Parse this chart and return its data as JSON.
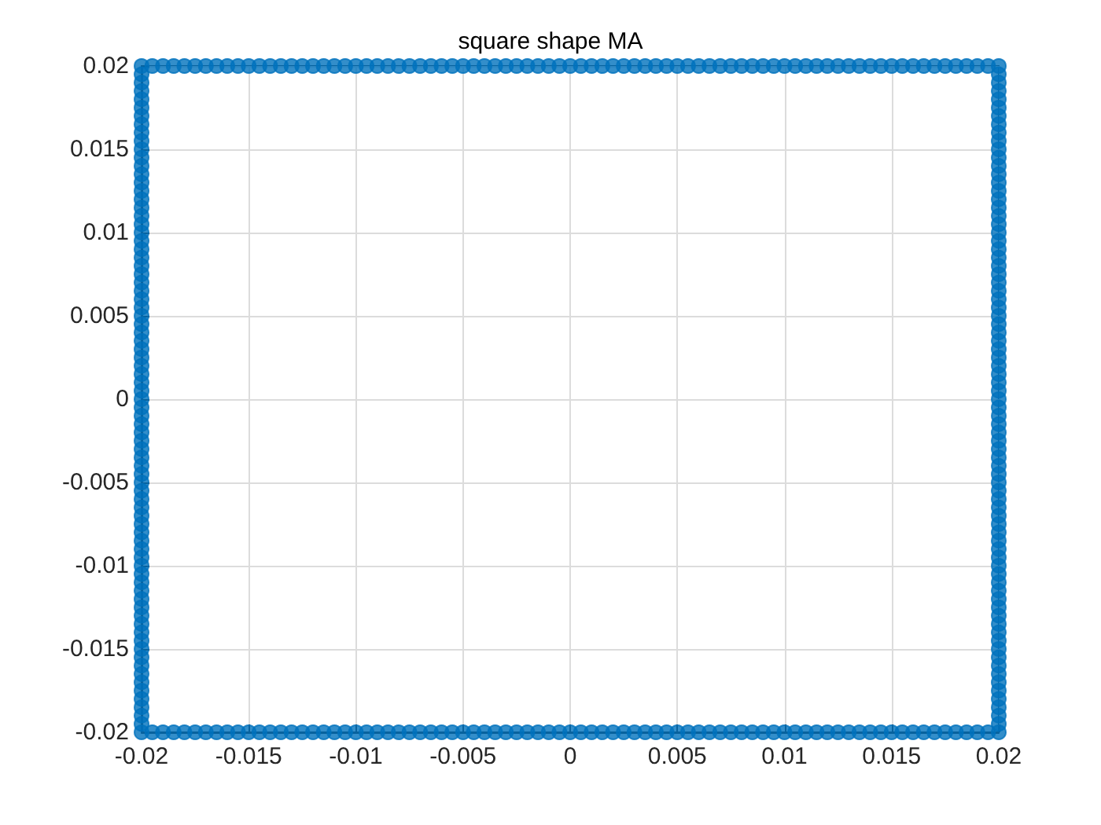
{
  "chart_data": {
    "type": "scatter",
    "title": "square shape MA",
    "series": [
      {
        "color": "#0072bd",
        "x": [
          -0.02,
          -0.0195,
          -0.019,
          -0.0185,
          -0.018,
          -0.0175,
          -0.017,
          -0.0165,
          -0.016,
          -0.0155,
          -0.015,
          -0.0145,
          -0.014,
          -0.0135,
          -0.013,
          -0.0125,
          -0.012,
          -0.0115,
          -0.011,
          -0.0105,
          -0.01,
          -0.0095,
          -0.009,
          -0.0085,
          -0.008,
          -0.0075,
          -0.007,
          -0.0065,
          -0.006,
          -0.0055,
          -0.005,
          -0.0045,
          -0.004,
          -0.0035,
          -0.003,
          -0.0025,
          -0.002,
          -0.0015,
          -0.001,
          -0.0005,
          0,
          0.0005,
          0.001,
          0.0015,
          0.002,
          0.0025,
          0.003,
          0.0035,
          0.004,
          0.0045,
          0.005,
          0.0055,
          0.006,
          0.0065,
          0.007,
          0.0075,
          0.008,
          0.0085,
          0.009,
          0.0095,
          0.01,
          0.0105,
          0.011,
          0.0115,
          0.012,
          0.0125,
          0.013,
          0.0135,
          0.014,
          0.0145,
          0.015,
          0.0155,
          0.016,
          0.0165,
          0.017,
          0.0175,
          0.018,
          0.0185,
          0.019,
          0.0195,
          0.02,
          0.02,
          0.02,
          0.02,
          0.02,
          0.02,
          0.02,
          0.02,
          0.02,
          0.02,
          0.02,
          0.02,
          0.02,
          0.02,
          0.02,
          0.02,
          0.02,
          0.02,
          0.02,
          0.02,
          0.02,
          0.02,
          0.02,
          0.02,
          0.02,
          0.02,
          0.02,
          0.02,
          0.02,
          0.02,
          0.02,
          0.02,
          0.02,
          0.02,
          0.02,
          0.02,
          0.02,
          0.02,
          0.02,
          0.02,
          0.02,
          0.02,
          0.02,
          0.02,
          0.02,
          0.02,
          0.02,
          0.02,
          0.02,
          0.02,
          0.02,
          0.02,
          0.02,
          0.02,
          0.02,
          0.02,
          0.02,
          0.02,
          0.02,
          0.02,
          0.02,
          0.02,
          0.02,
          0.02,
          0.02,
          0.02,
          0.02,
          0.02,
          0.02,
          0.02,
          0.02,
          0.02,
          0.02,
          0.02,
          0.02,
          0.02,
          0.02,
          0.02,
          0.02,
          0.02,
          0.02,
          0.0195,
          0.019,
          0.0185,
          0.018,
          0.0175,
          0.017,
          0.0165,
          0.016,
          0.0155,
          0.015,
          0.0145,
          0.014,
          0.0135,
          0.013,
          0.0125,
          0.012,
          0.0115,
          0.011,
          0.0105,
          0.01,
          0.0095,
          0.009,
          0.0085,
          0.008,
          0.0075,
          0.007,
          0.0065,
          0.006,
          0.0055,
          0.005,
          0.0045,
          0.004,
          0.0035,
          0.003,
          0.0025,
          0.002,
          0.0015,
          0.001,
          0.0005,
          0,
          -0.0005,
          -0.001,
          -0.0015,
          -0.002,
          -0.0025,
          -0.003,
          -0.0035,
          -0.004,
          -0.0045,
          -0.005,
          -0.0055,
          -0.006,
          -0.0065,
          -0.007,
          -0.0075,
          -0.008,
          -0.0085,
          -0.009,
          -0.0095,
          -0.01,
          -0.0105,
          -0.011,
          -0.0115,
          -0.012,
          -0.0125,
          -0.013,
          -0.0135,
          -0.014,
          -0.0145,
          -0.015,
          -0.0155,
          -0.016,
          -0.0165,
          -0.017,
          -0.0175,
          -0.018,
          -0.0185,
          -0.019,
          -0.0195,
          -0.02,
          -0.02,
          -0.02,
          -0.02,
          -0.02,
          -0.02,
          -0.02,
          -0.02,
          -0.02,
          -0.02,
          -0.02,
          -0.02,
          -0.02,
          -0.02,
          -0.02,
          -0.02,
          -0.02,
          -0.02,
          -0.02,
          -0.02,
          -0.02,
          -0.02,
          -0.02,
          -0.02,
          -0.02,
          -0.02,
          -0.02,
          -0.02,
          -0.02,
          -0.02,
          -0.02,
          -0.02,
          -0.02,
          -0.02,
          -0.02,
          -0.02,
          -0.02,
          -0.02,
          -0.02,
          -0.02,
          -0.02,
          -0.02,
          -0.02,
          -0.02,
          -0.02,
          -0.02,
          -0.02,
          -0.02,
          -0.02,
          -0.02,
          -0.02,
          -0.02,
          -0.02,
          -0.02,
          -0.02,
          -0.02,
          -0.02,
          -0.02,
          -0.02,
          -0.02,
          -0.02,
          -0.02,
          -0.02,
          -0.02,
          -0.02,
          -0.02,
          -0.02,
          -0.02,
          -0.02,
          -0.02,
          -0.02,
          -0.02,
          -0.02,
          -0.02,
          -0.02,
          -0.02,
          -0.02,
          -0.02,
          -0.02,
          -0.02
        ],
        "values": [
          -0.02,
          -0.02,
          -0.02,
          -0.02,
          -0.02,
          -0.02,
          -0.02,
          -0.02,
          -0.02,
          -0.02,
          -0.02,
          -0.02,
          -0.02,
          -0.02,
          -0.02,
          -0.02,
          -0.02,
          -0.02,
          -0.02,
          -0.02,
          -0.02,
          -0.02,
          -0.02,
          -0.02,
          -0.02,
          -0.02,
          -0.02,
          -0.02,
          -0.02,
          -0.02,
          -0.02,
          -0.02,
          -0.02,
          -0.02,
          -0.02,
          -0.02,
          -0.02,
          -0.02,
          -0.02,
          -0.02,
          -0.02,
          -0.02,
          -0.02,
          -0.02,
          -0.02,
          -0.02,
          -0.02,
          -0.02,
          -0.02,
          -0.02,
          -0.02,
          -0.02,
          -0.02,
          -0.02,
          -0.02,
          -0.02,
          -0.02,
          -0.02,
          -0.02,
          -0.02,
          -0.02,
          -0.02,
          -0.02,
          -0.02,
          -0.02,
          -0.02,
          -0.02,
          -0.02,
          -0.02,
          -0.02,
          -0.02,
          -0.02,
          -0.02,
          -0.02,
          -0.02,
          -0.02,
          -0.02,
          -0.02,
          -0.02,
          -0.02,
          -0.02,
          -0.0195,
          -0.019,
          -0.0185,
          -0.018,
          -0.0175,
          -0.017,
          -0.0165,
          -0.016,
          -0.0155,
          -0.015,
          -0.0145,
          -0.014,
          -0.0135,
          -0.013,
          -0.0125,
          -0.012,
          -0.0115,
          -0.011,
          -0.0105,
          -0.01,
          -0.0095,
          -0.009,
          -0.0085,
          -0.008,
          -0.0075,
          -0.007,
          -0.0065,
          -0.006,
          -0.0055,
          -0.005,
          -0.0045,
          -0.004,
          -0.0035,
          -0.003,
          -0.0025,
          -0.002,
          -0.0015,
          -0.001,
          -0.0005,
          0,
          0.0005,
          0.001,
          0.0015,
          0.002,
          0.0025,
          0.003,
          0.0035,
          0.004,
          0.0045,
          0.005,
          0.0055,
          0.006,
          0.0065,
          0.007,
          0.0075,
          0.008,
          0.0085,
          0.009,
          0.0095,
          0.01,
          0.0105,
          0.011,
          0.0115,
          0.012,
          0.0125,
          0.013,
          0.0135,
          0.014,
          0.0145,
          0.015,
          0.0155,
          0.016,
          0.0165,
          0.017,
          0.0175,
          0.018,
          0.0185,
          0.019,
          0.0195,
          0.02,
          0.02,
          0.02,
          0.02,
          0.02,
          0.02,
          0.02,
          0.02,
          0.02,
          0.02,
          0.02,
          0.02,
          0.02,
          0.02,
          0.02,
          0.02,
          0.02,
          0.02,
          0.02,
          0.02,
          0.02,
          0.02,
          0.02,
          0.02,
          0.02,
          0.02,
          0.02,
          0.02,
          0.02,
          0.02,
          0.02,
          0.02,
          0.02,
          0.02,
          0.02,
          0.02,
          0.02,
          0.02,
          0.02,
          0.02,
          0.02,
          0.02,
          0.02,
          0.02,
          0.02,
          0.02,
          0.02,
          0.02,
          0.02,
          0.02,
          0.02,
          0.02,
          0.02,
          0.02,
          0.02,
          0.02,
          0.02,
          0.02,
          0.02,
          0.02,
          0.02,
          0.02,
          0.02,
          0.02,
          0.02,
          0.02,
          0.02,
          0.02,
          0.02,
          0.02,
          0.02,
          0.02,
          0.02,
          0.02,
          0.02,
          0.02,
          0.02,
          0.02,
          0.02,
          0.02,
          0.02,
          0.0195,
          0.019,
          0.0185,
          0.018,
          0.0175,
          0.017,
          0.0165,
          0.016,
          0.0155,
          0.015,
          0.0145,
          0.014,
          0.0135,
          0.013,
          0.0125,
          0.012,
          0.0115,
          0.011,
          0.0105,
          0.01,
          0.0095,
          0.009,
          0.0085,
          0.008,
          0.0075,
          0.007,
          0.0065,
          0.006,
          0.0055,
          0.005,
          0.0045,
          0.004,
          0.0035,
          0.003,
          0.0025,
          0.002,
          0.0015,
          0.001,
          0.0005,
          0,
          -0.0005,
          -0.001,
          -0.0015,
          -0.002,
          -0.0025,
          -0.003,
          -0.0035,
          -0.004,
          -0.0045,
          -0.005,
          -0.0055,
          -0.006,
          -0.0065,
          -0.007,
          -0.0075,
          -0.008,
          -0.0085,
          -0.009,
          -0.0095,
          -0.01,
          -0.0105,
          -0.011,
          -0.0115,
          -0.012,
          -0.0125,
          -0.013,
          -0.0135,
          -0.014,
          -0.0145,
          -0.015,
          -0.0155,
          -0.016,
          -0.0165,
          -0.017,
          -0.0175,
          -0.018,
          -0.0185,
          -0.019,
          -0.0195
        ]
      }
    ],
    "xlim": [
      -0.02,
      0.02
    ],
    "ylim": [
      -0.02,
      0.02
    ],
    "xticks": [
      -0.02,
      -0.015,
      -0.01,
      -0.005,
      0,
      0.005,
      0.01,
      0.015,
      0.02
    ],
    "yticks": [
      -0.02,
      -0.015,
      -0.01,
      -0.005,
      0,
      0.005,
      0.01,
      0.015,
      0.02
    ],
    "grid": true,
    "marker": "circle"
  }
}
